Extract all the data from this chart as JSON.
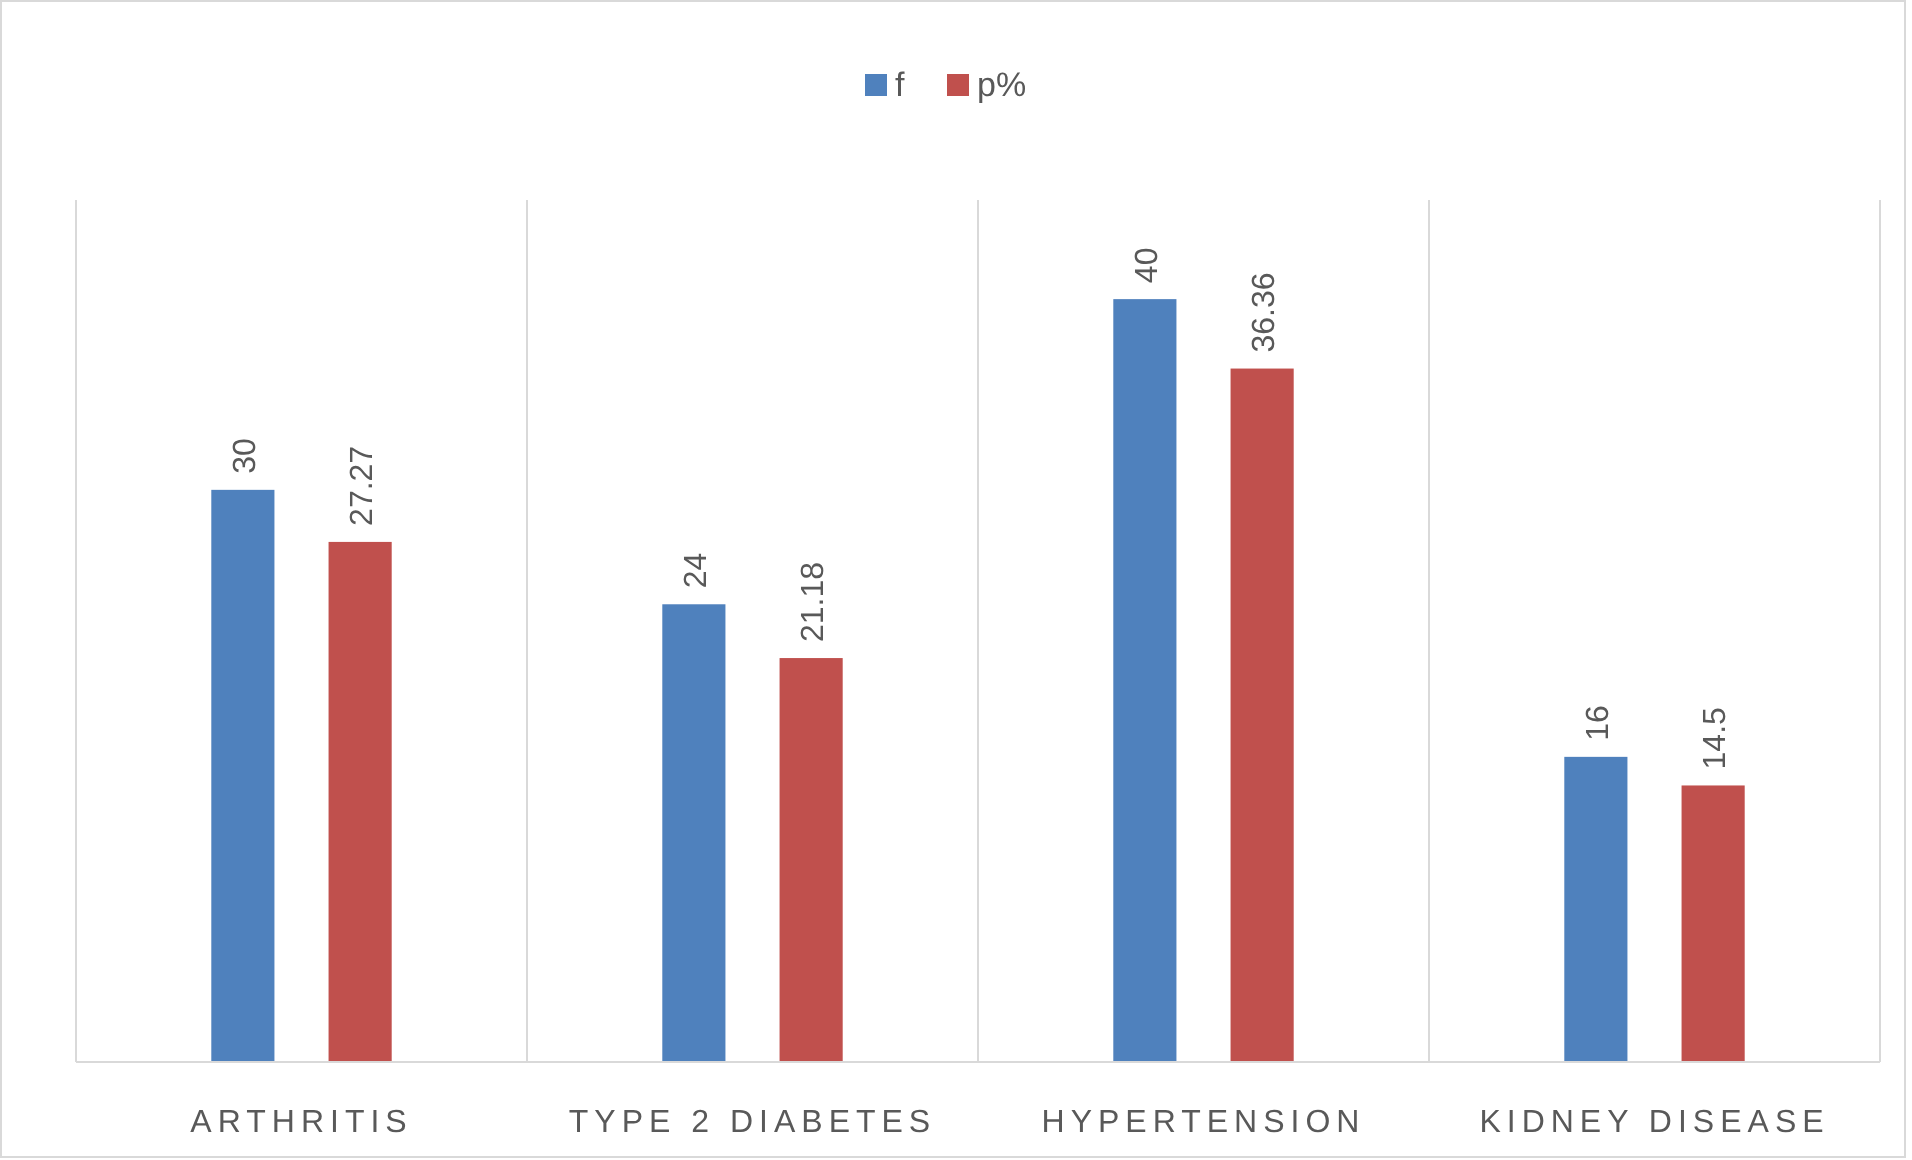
{
  "chart_data": {
    "type": "bar",
    "categories": [
      "ARTHRITIS",
      "TYPE 2 DIABETES",
      "HYPERTENSION",
      "KIDNEY DISEASE"
    ],
    "series": [
      {
        "name": "f",
        "color": "#4f81bd",
        "values": [
          30,
          24,
          40,
          16
        ]
      },
      {
        "name": "p%",
        "color": "#c0504d",
        "values": [
          27.27,
          21.18,
          36.36,
          14.5
        ]
      }
    ],
    "data_labels": true,
    "grid": "x",
    "legend": "top"
  }
}
